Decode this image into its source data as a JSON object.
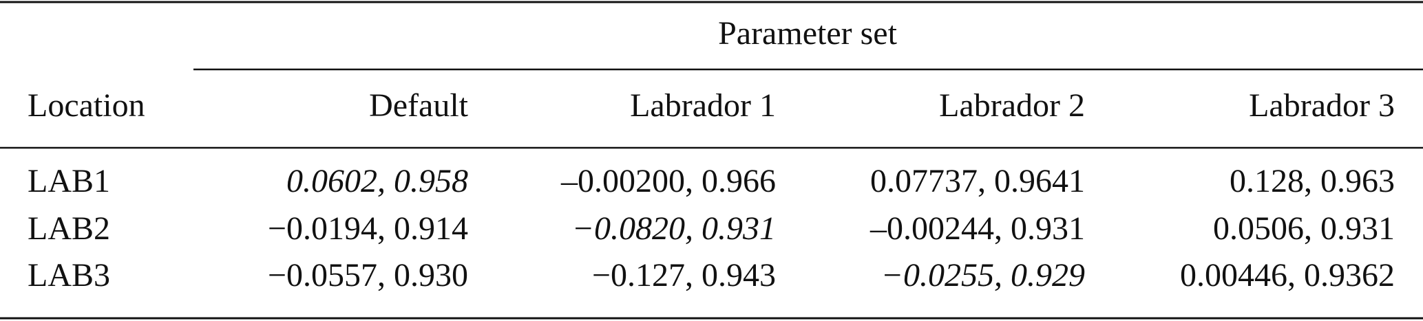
{
  "table": {
    "spanner": "Parameter set",
    "columns": [
      "Location",
      "Default",
      "Labrador 1",
      "Labrador 2",
      "Labrador 3"
    ],
    "rows": [
      [
        "LAB1",
        "0.0602, 0.958",
        "–0.00200, 0.966",
        "0.07737, 0.9641",
        "0.128, 0.963"
      ],
      [
        "LAB2",
        "−0.0194, 0.914",
        "−0.0820, 0.931",
        "–0.00244, 0.931",
        "0.0506, 0.931"
      ],
      [
        "LAB3",
        "−0.0557, 0.930",
        "−0.127, 0.943",
        "−0.0255, 0.929",
        "0.00446, 0.9362"
      ]
    ]
  }
}
